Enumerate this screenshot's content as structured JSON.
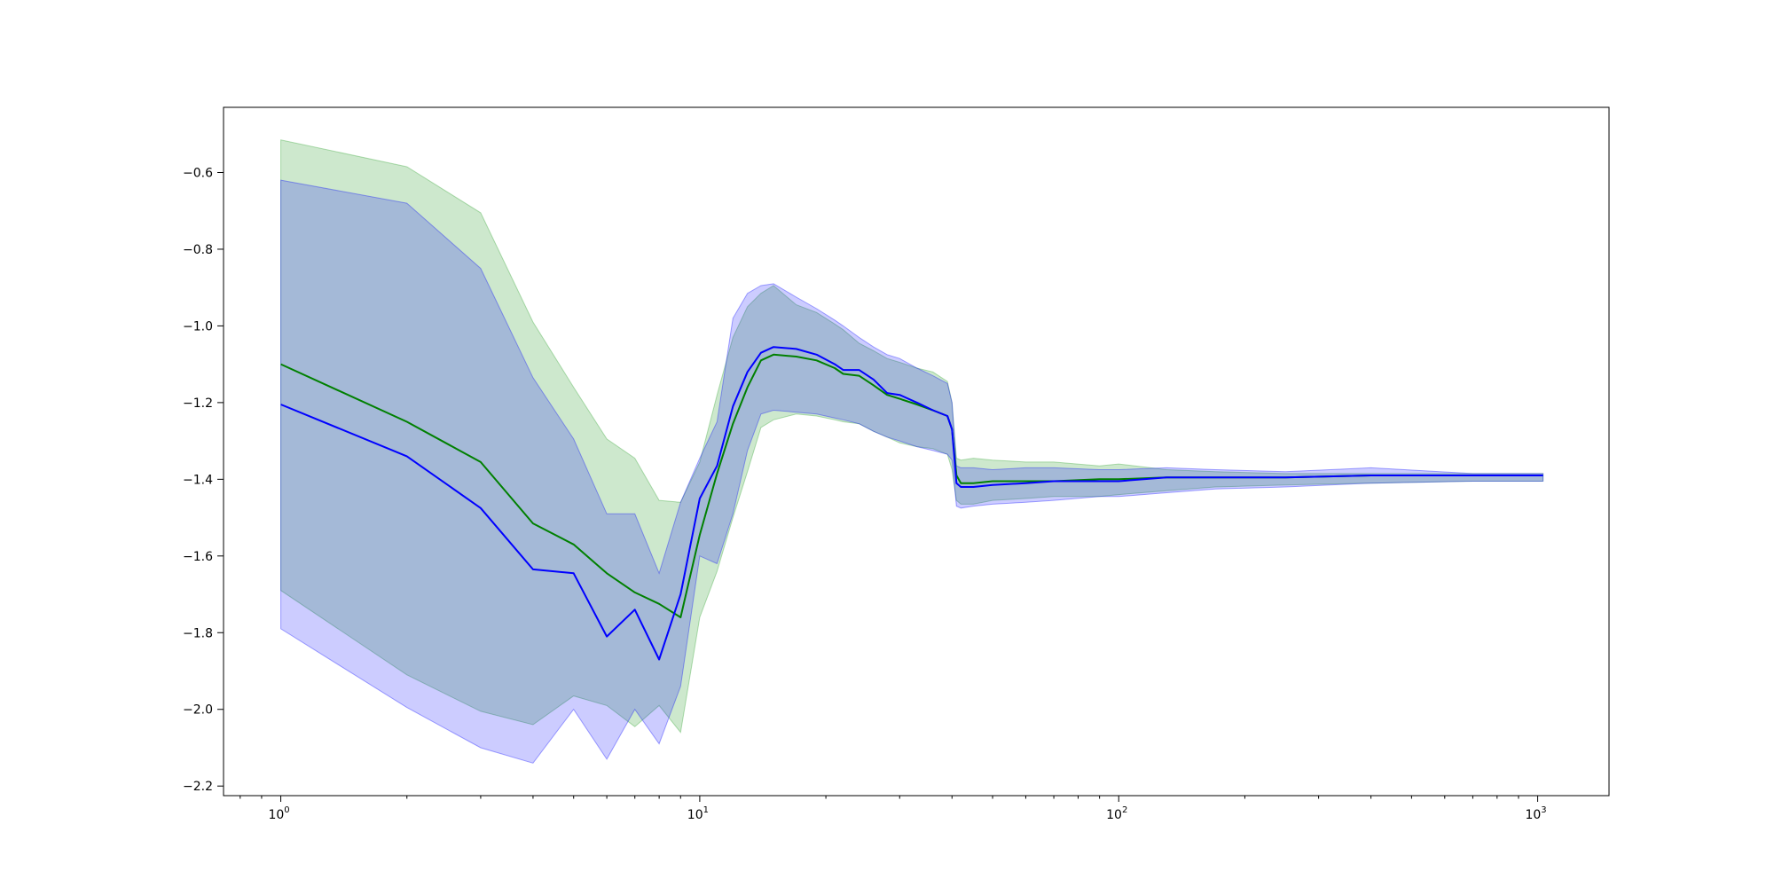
{
  "chart_data": {
    "type": "line",
    "title": "",
    "xlabel": "",
    "ylabel": "",
    "xscale": "log",
    "xlim": [
      0.73,
      1480
    ],
    "ylim": [
      -2.225,
      -0.43
    ],
    "grid": false,
    "x_ticks": [
      {
        "value": 1,
        "base": "10",
        "exp": "0"
      },
      {
        "value": 10,
        "base": "10",
        "exp": "1"
      },
      {
        "value": 100,
        "base": "10",
        "exp": "2"
      },
      {
        "value": 1000,
        "base": "10",
        "exp": "3"
      }
    ],
    "y_ticks": [
      {
        "value": -0.6,
        "label": "−0.6"
      },
      {
        "value": -0.8,
        "label": "−0.8"
      },
      {
        "value": -1.0,
        "label": "−1.0"
      },
      {
        "value": -1.2,
        "label": "−1.2"
      },
      {
        "value": -1.4,
        "label": "−1.4"
      },
      {
        "value": -1.6,
        "label": "−1.6"
      },
      {
        "value": -1.8,
        "label": "−1.8"
      },
      {
        "value": -2.0,
        "label": "−2.0"
      },
      {
        "value": -2.2,
        "label": "−2.2"
      }
    ],
    "series": [
      {
        "color": "#008000",
        "band_color": "#2ca02c",
        "band_opacity": 0.24,
        "x": [
          1,
          2,
          3,
          4,
          5,
          6,
          7,
          8,
          9,
          10,
          11,
          12,
          13,
          14,
          15,
          17,
          19,
          21,
          22,
          24,
          26,
          28,
          30,
          33,
          36,
          39,
          40,
          41,
          42,
          45,
          50,
          60,
          70,
          90,
          100,
          130,
          170,
          250,
          400,
          700,
          1030
        ],
        "y": [
          -1.1,
          -1.25,
          -1.355,
          -1.515,
          -1.57,
          -1.645,
          -1.695,
          -1.725,
          -1.76,
          -1.545,
          -1.385,
          -1.255,
          -1.16,
          -1.09,
          -1.075,
          -1.08,
          -1.09,
          -1.11,
          -1.125,
          -1.13,
          -1.155,
          -1.18,
          -1.19,
          -1.205,
          -1.22,
          -1.235,
          -1.27,
          -1.39,
          -1.41,
          -1.41,
          -1.405,
          -1.405,
          -1.405,
          -1.4,
          -1.4,
          -1.395,
          -1.395,
          -1.395,
          -1.39,
          -1.39,
          -1.39
        ],
        "upper": [
          -0.515,
          -0.585,
          -0.705,
          -0.99,
          -1.16,
          -1.295,
          -1.345,
          -1.455,
          -1.46,
          -1.355,
          -1.18,
          -1.03,
          -0.95,
          -0.915,
          -0.895,
          -0.945,
          -0.965,
          -0.995,
          -1.01,
          -1.045,
          -1.065,
          -1.085,
          -1.095,
          -1.11,
          -1.12,
          -1.145,
          -1.2,
          -1.345,
          -1.35,
          -1.345,
          -1.35,
          -1.355,
          -1.355,
          -1.365,
          -1.36,
          -1.375,
          -1.38,
          -1.385,
          -1.385,
          -1.385,
          -1.385
        ],
        "lower": [
          -1.69,
          -1.91,
          -2.005,
          -2.04,
          -1.965,
          -1.99,
          -2.045,
          -1.99,
          -2.06,
          -1.76,
          -1.64,
          -1.5,
          -1.38,
          -1.265,
          -1.245,
          -1.23,
          -1.235,
          -1.245,
          -1.25,
          -1.255,
          -1.275,
          -1.29,
          -1.305,
          -1.315,
          -1.32,
          -1.335,
          -1.375,
          -1.455,
          -1.465,
          -1.465,
          -1.455,
          -1.45,
          -1.445,
          -1.445,
          -1.44,
          -1.43,
          -1.42,
          -1.415,
          -1.41,
          -1.405,
          -1.405
        ]
      },
      {
        "color": "#0000ff",
        "band_color": "#0000ff",
        "band_opacity": 0.2,
        "x": [
          1,
          2,
          3,
          4,
          5,
          6,
          7,
          8,
          9,
          10,
          11,
          12,
          13,
          14,
          15,
          17,
          19,
          21,
          22,
          24,
          26,
          28,
          30,
          33,
          36,
          39,
          40,
          41,
          42,
          45,
          50,
          60,
          70,
          90,
          100,
          130,
          170,
          250,
          400,
          700,
          1030
        ],
        "y": [
          -1.205,
          -1.34,
          -1.475,
          -1.635,
          -1.645,
          -1.81,
          -1.74,
          -1.87,
          -1.7,
          -1.45,
          -1.365,
          -1.21,
          -1.12,
          -1.07,
          -1.055,
          -1.06,
          -1.075,
          -1.1,
          -1.115,
          -1.115,
          -1.14,
          -1.175,
          -1.18,
          -1.2,
          -1.22,
          -1.235,
          -1.27,
          -1.41,
          -1.42,
          -1.42,
          -1.415,
          -1.41,
          -1.405,
          -1.405,
          -1.405,
          -1.395,
          -1.395,
          -1.395,
          -1.39,
          -1.39,
          -1.39
        ],
        "upper": [
          -0.62,
          -0.68,
          -0.85,
          -1.135,
          -1.295,
          -1.49,
          -1.49,
          -1.645,
          -1.46,
          -1.345,
          -1.25,
          -0.98,
          -0.915,
          -0.895,
          -0.89,
          -0.925,
          -0.955,
          -0.985,
          -1.0,
          -1.03,
          -1.055,
          -1.075,
          -1.085,
          -1.11,
          -1.13,
          -1.15,
          -1.2,
          -1.365,
          -1.37,
          -1.37,
          -1.375,
          -1.37,
          -1.37,
          -1.375,
          -1.375,
          -1.37,
          -1.375,
          -1.38,
          -1.37,
          -1.385,
          -1.385
        ],
        "lower": [
          -1.79,
          -1.995,
          -2.1,
          -2.14,
          -2.0,
          -2.13,
          -2.0,
          -2.09,
          -1.94,
          -1.6,
          -1.62,
          -1.49,
          -1.325,
          -1.23,
          -1.22,
          -1.225,
          -1.23,
          -1.24,
          -1.245,
          -1.255,
          -1.275,
          -1.29,
          -1.3,
          -1.315,
          -1.325,
          -1.335,
          -1.35,
          -1.47,
          -1.475,
          -1.47,
          -1.465,
          -1.46,
          -1.455,
          -1.445,
          -1.445,
          -1.435,
          -1.425,
          -1.42,
          -1.41,
          -1.405,
          -1.405
        ]
      }
    ]
  }
}
